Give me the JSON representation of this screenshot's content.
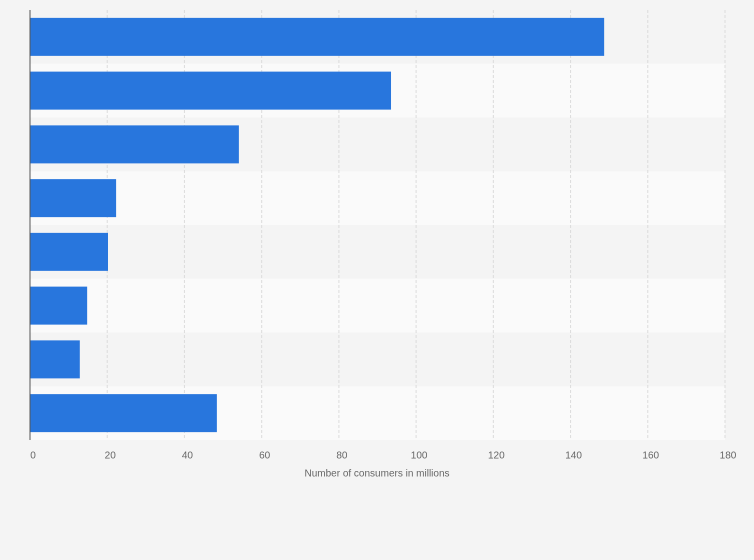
{
  "chart_data": {
    "type": "barh",
    "categories": [
      null,
      null,
      null,
      null,
      null,
      null,
      null,
      null
    ],
    "values": [
      148.7,
      93.5,
      54.1,
      22.3,
      20.2,
      14.8,
      12.9,
      48.4
    ],
    "color": "#2876dd",
    "xlabel": "Number of consumers in millions",
    "xlim": [
      0,
      180
    ],
    "xticks": [
      0,
      20,
      40,
      60,
      80,
      100,
      120,
      140,
      160,
      180
    ],
    "grid": true
  }
}
